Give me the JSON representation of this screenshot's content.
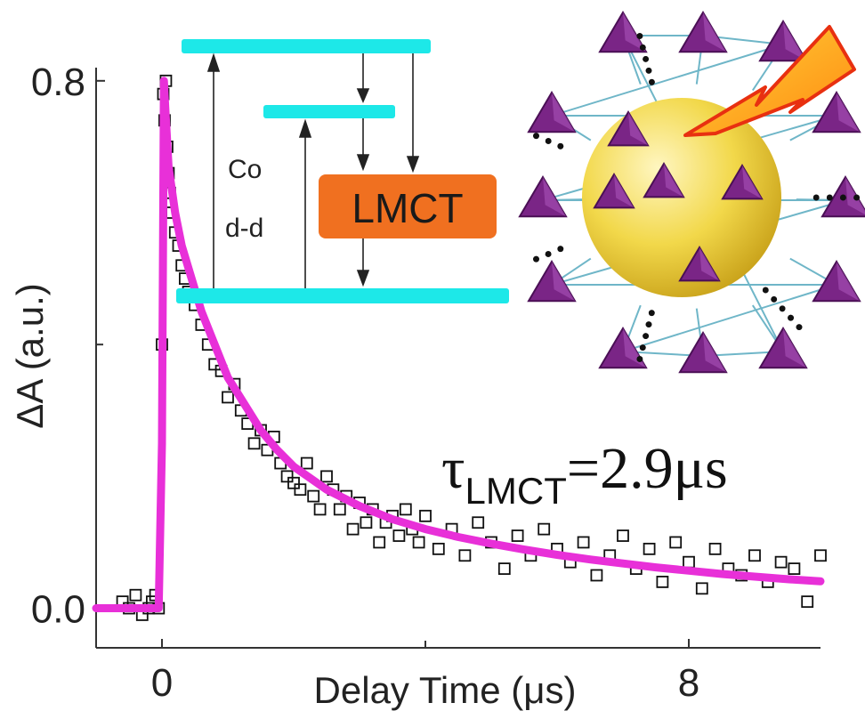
{
  "chart_data": {
    "type": "scatter",
    "title": "",
    "xlabel": "Delay Time (μs)",
    "ylabel": "ΔA (a.u.)",
    "xlim": [
      -1.0,
      10.0
    ],
    "ylim": [
      -0.06,
      0.82
    ],
    "x_ticks": [
      0,
      8
    ],
    "y_ticks": [
      0.0,
      0.8
    ],
    "x_tick_labels": [
      "0",
      "8"
    ],
    "y_tick_labels": [
      "0.0",
      "0.8"
    ],
    "grid": false,
    "series": [
      {
        "kind": "scatter",
        "marker": "open-square",
        "color": "#111111",
        "x": [
          -0.6,
          -0.5,
          -0.4,
          -0.3,
          -0.2,
          -0.15,
          -0.1,
          -0.05,
          0.0,
          0.02,
          0.04,
          0.06,
          0.08,
          0.1,
          0.12,
          0.15,
          0.2,
          0.25,
          0.3,
          0.35,
          0.4,
          0.5,
          0.6,
          0.7,
          0.8,
          0.9,
          1.0,
          1.1,
          1.2,
          1.3,
          1.4,
          1.5,
          1.6,
          1.7,
          1.8,
          1.9,
          2.0,
          2.1,
          2.2,
          2.3,
          2.4,
          2.5,
          2.6,
          2.7,
          2.8,
          2.9,
          3.0,
          3.1,
          3.2,
          3.3,
          3.4,
          3.5,
          3.6,
          3.7,
          3.8,
          3.9,
          4.0,
          4.2,
          4.4,
          4.6,
          4.8,
          5.0,
          5.2,
          5.4,
          5.6,
          5.8,
          6.0,
          6.2,
          6.4,
          6.6,
          6.8,
          7.0,
          7.2,
          7.4,
          7.6,
          7.8,
          8.0,
          8.2,
          8.4,
          8.6,
          8.8,
          9.0,
          9.2,
          9.4,
          9.6,
          9.8,
          10.0
        ],
        "y": [
          0.01,
          0.0,
          0.02,
          -0.01,
          0.0,
          0.01,
          0.02,
          0.0,
          0.4,
          0.78,
          0.74,
          0.8,
          0.7,
          0.66,
          0.63,
          0.6,
          0.57,
          0.55,
          0.52,
          0.5,
          0.48,
          0.46,
          0.43,
          0.4,
          0.37,
          0.36,
          0.32,
          0.34,
          0.3,
          0.28,
          0.25,
          0.27,
          0.24,
          0.26,
          0.22,
          0.2,
          0.19,
          0.18,
          0.22,
          0.17,
          0.15,
          0.2,
          0.18,
          0.15,
          0.17,
          0.12,
          0.16,
          0.13,
          0.15,
          0.1,
          0.13,
          0.14,
          0.11,
          0.15,
          0.12,
          0.1,
          0.14,
          0.09,
          0.12,
          0.08,
          0.13,
          0.1,
          0.06,
          0.11,
          0.08,
          0.12,
          0.09,
          0.07,
          0.1,
          0.05,
          0.08,
          0.11,
          0.06,
          0.09,
          0.04,
          0.1,
          0.07,
          0.03,
          0.09,
          0.06,
          0.05,
          0.08,
          0.04,
          0.07,
          0.06,
          0.01,
          0.08
        ]
      },
      {
        "kind": "line",
        "color": "#e830d8",
        "x": [
          -1.0,
          -0.6,
          -0.2,
          -0.05,
          0.0,
          0.03,
          0.05,
          0.1,
          0.2,
          0.3,
          0.45,
          0.6,
          0.8,
          1.0,
          1.25,
          1.5,
          1.75,
          2.0,
          2.5,
          3.0,
          3.5,
          4.0,
          4.5,
          5.0,
          5.5,
          6.0,
          6.5,
          7.0,
          7.5,
          8.0,
          8.5,
          9.0,
          9.5,
          10.0
        ],
        "y": [
          0.0,
          0.0,
          0.0,
          0.0,
          0.25,
          0.8,
          0.76,
          0.67,
          0.6,
          0.55,
          0.5,
          0.45,
          0.4,
          0.35,
          0.31,
          0.27,
          0.24,
          0.215,
          0.18,
          0.155,
          0.135,
          0.12,
          0.108,
          0.098,
          0.089,
          0.081,
          0.074,
          0.068,
          0.062,
          0.057,
          0.052,
          0.048,
          0.044,
          0.041
        ]
      }
    ],
    "annotations": {
      "tau_symbol": "τ",
      "tau_subscript": "LMCT",
      "tau_value": "=2.9μs"
    }
  },
  "inset": {
    "co_label": "Co",
    "dd_label": "d-d",
    "lmct_label": "LMCT",
    "bar_color": "#1de8e8",
    "lmct_box_color": "#f07020"
  },
  "cluster": {
    "sphere_color": "#f2d84a",
    "polyhedra_color": "#7a2586",
    "bolt_color": "#ffb010"
  }
}
